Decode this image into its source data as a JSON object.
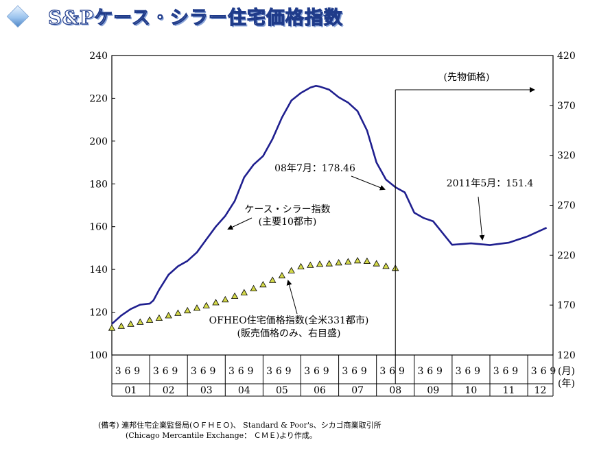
{
  "page": {
    "title": "S&Pケース・シラー住宅価格指数"
  },
  "chart_data": {
    "type": "line",
    "title": "S&Pケース・シラー住宅価格指数",
    "y_left": {
      "min": 100,
      "max": 240,
      "ticks": [
        100,
        120,
        140,
        160,
        180,
        200,
        220,
        240
      ]
    },
    "y_right": {
      "min": 120,
      "max": 420,
      "ticks": [
        120,
        170,
        220,
        270,
        320,
        370,
        420
      ]
    },
    "x_axis": {
      "months_label": "(月)",
      "years_label": "(年)",
      "month_ticks": [
        "3",
        "6",
        "9"
      ],
      "years": [
        "01",
        "02",
        "03",
        "04",
        "05",
        "06",
        "07",
        "08",
        "09",
        "10",
        "11",
        "12"
      ]
    },
    "futures_marker": {
      "x": 2008.5,
      "label": "(先物価格)"
    },
    "series": [
      {
        "name": "ケース・シラー指数",
        "axis": "left",
        "color": "#1f1f8f",
        "style": "line",
        "points": [
          [
            2001.0,
            114.5
          ],
          [
            2001.25,
            118.5
          ],
          [
            2001.5,
            121.5
          ],
          [
            2001.75,
            123.5
          ],
          [
            2002.0,
            124
          ],
          [
            2002.1,
            125.5
          ],
          [
            2002.25,
            130.5
          ],
          [
            2002.5,
            137.5
          ],
          [
            2002.75,
            141.5
          ],
          [
            2003.0,
            144
          ],
          [
            2003.25,
            148
          ],
          [
            2003.5,
            154
          ],
          [
            2003.75,
            160
          ],
          [
            2004.0,
            165
          ],
          [
            2004.25,
            172
          ],
          [
            2004.5,
            183
          ],
          [
            2004.75,
            189
          ],
          [
            2005.0,
            193
          ],
          [
            2005.25,
            201
          ],
          [
            2005.5,
            211
          ],
          [
            2005.75,
            219
          ],
          [
            2006.0,
            222.5
          ],
          [
            2006.25,
            225
          ],
          [
            2006.4,
            225.8
          ],
          [
            2006.5,
            225.5
          ],
          [
            2006.75,
            224
          ],
          [
            2007.0,
            220.5
          ],
          [
            2007.25,
            218
          ],
          [
            2007.5,
            214
          ],
          [
            2007.75,
            205
          ],
          [
            2008.0,
            190
          ],
          [
            2008.25,
            182
          ],
          [
            2008.5,
            178.46
          ],
          [
            2008.75,
            176
          ],
          [
            2009.0,
            166.5
          ],
          [
            2009.25,
            164
          ],
          [
            2009.5,
            162.5
          ],
          [
            2009.75,
            157
          ],
          [
            2010.0,
            151.5
          ],
          [
            2010.5,
            152.2
          ],
          [
            2011.0,
            151.4
          ],
          [
            2011.5,
            152.5
          ],
          [
            2012.0,
            155.5
          ],
          [
            2012.5,
            159.5
          ]
        ]
      },
      {
        "name": "OFHEO住宅価格指数(全米331都市)(販売価格のみ、右目盛)",
        "axis": "right",
        "color": "#d4d94a",
        "style": "triangle-markers",
        "points": [
          [
            2001.0,
            147
          ],
          [
            2001.25,
            149
          ],
          [
            2001.5,
            151
          ],
          [
            2001.75,
            153
          ],
          [
            2002.0,
            155
          ],
          [
            2002.25,
            157
          ],
          [
            2002.5,
            159.5
          ],
          [
            2002.75,
            162
          ],
          [
            2003.0,
            164.5
          ],
          [
            2003.25,
            167
          ],
          [
            2003.5,
            169.5
          ],
          [
            2003.75,
            172.5
          ],
          [
            2004.0,
            175.5
          ],
          [
            2004.25,
            179
          ],
          [
            2004.5,
            182.5
          ],
          [
            2004.75,
            186.5
          ],
          [
            2005.0,
            190.5
          ],
          [
            2005.25,
            195
          ],
          [
            2005.5,
            199.5
          ],
          [
            2005.75,
            204.5
          ],
          [
            2006.0,
            208.5
          ],
          [
            2006.25,
            210
          ],
          [
            2006.5,
            211
          ],
          [
            2006.75,
            211.5
          ],
          [
            2007.0,
            212.5
          ],
          [
            2007.25,
            213.5
          ],
          [
            2007.5,
            214.5
          ],
          [
            2007.75,
            214
          ],
          [
            2008.0,
            211.5
          ],
          [
            2008.25,
            209
          ],
          [
            2008.5,
            207
          ]
        ]
      }
    ],
    "annotations": {
      "case_shiller": [
        "ケース・シラー指数",
        "(主要10都市)"
      ],
      "ofheo": [
        "OFHEO住宅価格指数(全米331都市)",
        "(販売価格のみ、右目盛)"
      ],
      "point_2008": "08年7月：178.46",
      "point_2011": "2011年5月：151.4"
    }
  },
  "notes": {
    "line1": "(備考)  連邦住宅企業監督局(ＯＦＨＥＯ)、 Standard & Poor's、シカゴ商業取引所",
    "line2": "(Chicago Mercantile Exchange： ＣＭＥ)より作成。"
  }
}
